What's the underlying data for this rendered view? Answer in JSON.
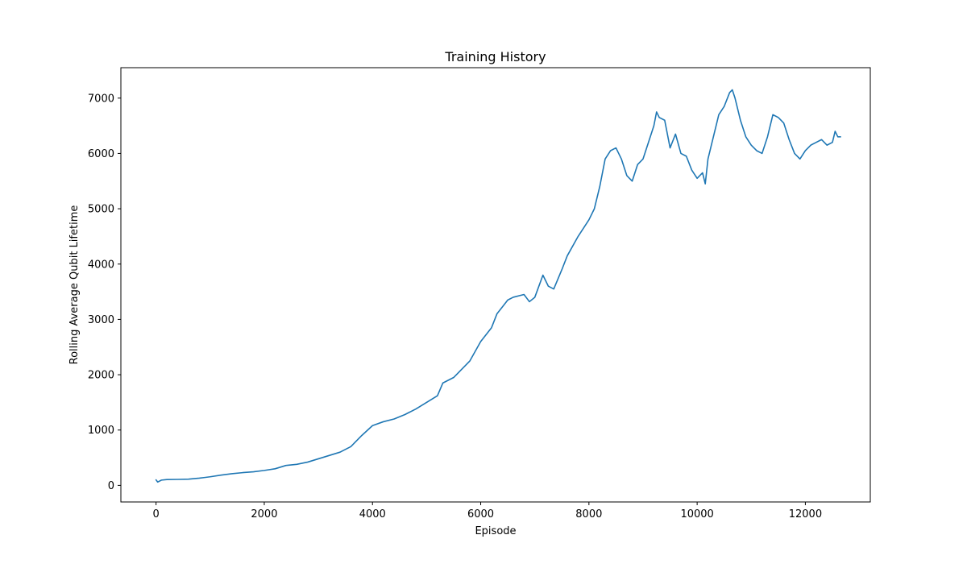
{
  "chart_data": {
    "type": "line",
    "title": "Training History",
    "xlabel": "Episode",
    "ylabel": "Rolling Average Qubit Lifetime",
    "xlim": [
      -650,
      13200
    ],
    "ylim": [
      -300,
      7550
    ],
    "xticks": [
      0,
      2000,
      4000,
      6000,
      8000,
      10000,
      12000
    ],
    "yticks": [
      0,
      1000,
      2000,
      3000,
      4000,
      5000,
      6000,
      7000
    ],
    "grid": false,
    "legend": "none",
    "series": [
      {
        "color": "#1f77b4",
        "x": [
          0,
          30,
          100,
          200,
          400,
          600,
          800,
          1000,
          1200,
          1400,
          1600,
          1800,
          2000,
          2200,
          2400,
          2600,
          2800,
          3000,
          3200,
          3400,
          3600,
          3800,
          4000,
          4200,
          4400,
          4600,
          4800,
          5000,
          5200,
          5300,
          5500,
          5700,
          5800,
          6000,
          6200,
          6300,
          6500,
          6600,
          6800,
          6900,
          7000,
          7150,
          7250,
          7350,
          7500,
          7600,
          7800,
          8000,
          8100,
          8200,
          8300,
          8400,
          8500,
          8600,
          8700,
          8800,
          8900,
          9000,
          9100,
          9200,
          9250,
          9300,
          9400,
          9500,
          9600,
          9700,
          9800,
          9900,
          10000,
          10100,
          10150,
          10200,
          10400,
          10500,
          10600,
          10650,
          10700,
          10800,
          10900,
          11000,
          11100,
          11200,
          11300,
          11400,
          11500,
          11600,
          11700,
          11800,
          11900,
          12000,
          12100,
          12200,
          12300,
          12400,
          12500,
          12550,
          12600,
          12650
        ],
        "y": [
          100,
          60,
          95,
          105,
          108,
          112,
          130,
          155,
          185,
          210,
          230,
          245,
          270,
          300,
          360,
          380,
          420,
          480,
          540,
          600,
          700,
          900,
          1080,
          1150,
          1200,
          1280,
          1380,
          1500,
          1620,
          1850,
          1950,
          2150,
          2250,
          2600,
          2850,
          3100,
          3350,
          3400,
          3450,
          3320,
          3400,
          3800,
          3600,
          3550,
          3900,
          4150,
          4500,
          4800,
          5000,
          5400,
          5900,
          6050,
          6100,
          5900,
          5600,
          5500,
          5800,
          5900,
          6200,
          6500,
          6750,
          6650,
          6600,
          6100,
          6350,
          6000,
          5950,
          5700,
          5550,
          5650,
          5450,
          5900,
          6700,
          6850,
          7100,
          7150,
          7000,
          6600,
          6300,
          6150,
          6050,
          6000,
          6300,
          6700,
          6650,
          6550,
          6250,
          6000,
          5900,
          6050,
          6150,
          6200,
          6250,
          6150,
          6200,
          6400,
          6300,
          6300
        ]
      }
    ]
  }
}
